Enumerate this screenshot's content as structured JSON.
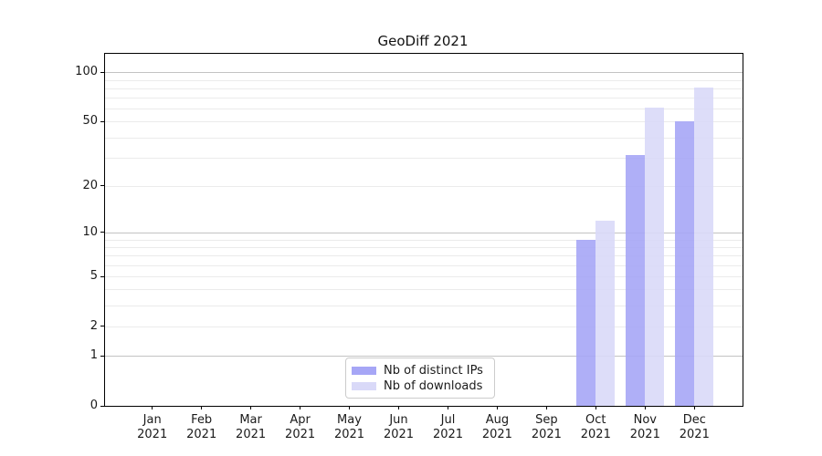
{
  "chart_data": {
    "type": "bar",
    "title": "GeoDiff 2021",
    "categories": [
      "Jan",
      "Feb",
      "Mar",
      "Apr",
      "May",
      "Jun",
      "Jul",
      "Aug",
      "Sep",
      "Oct",
      "Nov",
      "Dec"
    ],
    "category_year": "2021",
    "series": [
      {
        "name": "Nb of distinct IPs",
        "color": "#a6a6f6",
        "values": [
          0,
          0,
          0,
          0,
          0,
          0,
          0,
          0,
          0,
          9,
          31,
          50
        ]
      },
      {
        "name": "Nb of downloads",
        "color": "#d9d9f8",
        "values": [
          0,
          0,
          0,
          0,
          0,
          0,
          0,
          0,
          0,
          12,
          61,
          81
        ]
      }
    ],
    "yscale": "log1p",
    "ylim": [
      0,
      130
    ],
    "y_tick_labels": [
      0,
      1,
      2,
      5,
      10,
      20,
      50,
      100
    ],
    "y_major_gridlines": [
      1,
      10,
      100
    ],
    "y_minor_gridlines": [
      2,
      3,
      4,
      5,
      6,
      7,
      8,
      9,
      20,
      30,
      40,
      50,
      60,
      70,
      80,
      90
    ],
    "grid": true,
    "legend_position": "lower center",
    "colors": {
      "major_grid": "#c3c3c3",
      "minor_grid": "#ebebeb",
      "spine": "#000000",
      "text": "#1a1a1a",
      "background": "#ffffff"
    }
  }
}
